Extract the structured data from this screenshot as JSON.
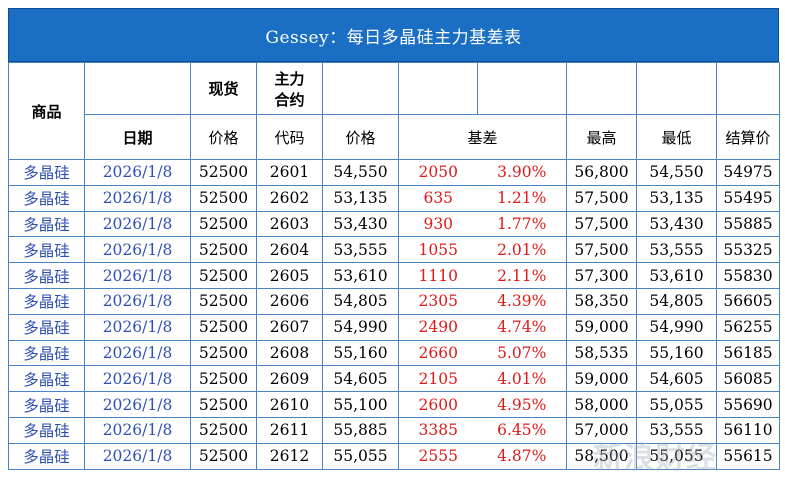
{
  "title": "Gessey：每日多晶硅主力基差表",
  "headers": {
    "product": "商品",
    "spot": "现货",
    "main_contract": [
      "主力",
      "合约"
    ],
    "date": "日期",
    "spot_price": "价格",
    "code": "代码",
    "price": "价格",
    "basis": "基差",
    "high": "最高",
    "low": "最低",
    "settle": "结算价"
  },
  "rows": [
    {
      "product": "多晶硅",
      "date": "2026/1/8",
      "spot": "52500",
      "code": "2601",
      "price": "54,550",
      "basis": "2050",
      "pct": "3.90%",
      "high": "56,800",
      "low": "54,550",
      "settle": "54975"
    },
    {
      "product": "多晶硅",
      "date": "2026/1/8",
      "spot": "52500",
      "code": "2602",
      "price": "53,135",
      "basis": "635",
      "pct": "1.21%",
      "high": "57,500",
      "low": "53,135",
      "settle": "55495"
    },
    {
      "product": "多晶硅",
      "date": "2026/1/8",
      "spot": "52500",
      "code": "2603",
      "price": "53,430",
      "basis": "930",
      "pct": "1.77%",
      "high": "57,500",
      "low": "53,430",
      "settle": "55885"
    },
    {
      "product": "多晶硅",
      "date": "2026/1/8",
      "spot": "52500",
      "code": "2604",
      "price": "53,555",
      "basis": "1055",
      "pct": "2.01%",
      "high": "57,500",
      "low": "53,555",
      "settle": "55325"
    },
    {
      "product": "多晶硅",
      "date": "2026/1/8",
      "spot": "52500",
      "code": "2605",
      "price": "53,610",
      "basis": "1110",
      "pct": "2.11%",
      "high": "57,300",
      "low": "53,610",
      "settle": "55830"
    },
    {
      "product": "多晶硅",
      "date": "2026/1/8",
      "spot": "52500",
      "code": "2606",
      "price": "54,805",
      "basis": "2305",
      "pct": "4.39%",
      "high": "58,350",
      "low": "54,805",
      "settle": "56605"
    },
    {
      "product": "多晶硅",
      "date": "2026/1/8",
      "spot": "52500",
      "code": "2607",
      "price": "54,990",
      "basis": "2490",
      "pct": "4.74%",
      "high": "59,000",
      "low": "54,990",
      "settle": "56255"
    },
    {
      "product": "多晶硅",
      "date": "2026/1/8",
      "spot": "52500",
      "code": "2608",
      "price": "55,160",
      "basis": "2660",
      "pct": "5.07%",
      "high": "58,535",
      "low": "55,160",
      "settle": "56185"
    },
    {
      "product": "多晶硅",
      "date": "2026/1/8",
      "spot": "52500",
      "code": "2609",
      "price": "54,605",
      "basis": "2105",
      "pct": "4.01%",
      "high": "59,000",
      "low": "54,605",
      "settle": "56085"
    },
    {
      "product": "多晶硅",
      "date": "2026/1/8",
      "spot": "52500",
      "code": "2610",
      "price": "55,100",
      "basis": "2600",
      "pct": "4.95%",
      "high": "58,000",
      "low": "55,055",
      "settle": "55690"
    },
    {
      "product": "多晶硅",
      "date": "2026/1/8",
      "spot": "52500",
      "code": "2611",
      "price": "55,885",
      "basis": "3385",
      "pct": "6.45%",
      "high": "57,000",
      "low": "53,555",
      "settle": "56110"
    },
    {
      "product": "多晶硅",
      "date": "2026/1/8",
      "spot": "52500",
      "code": "2612",
      "price": "55,055",
      "basis": "2555",
      "pct": "4.87%",
      "high": "58,500",
      "low": "55,055",
      "settle": "55615"
    }
  ],
  "colors": {
    "title_bg": "#1a6fc4",
    "border": "#4a84c4",
    "link_blue": "#2e4fb5",
    "basis_red": "#e01919"
  },
  "watermark": {
    "text": "新浪财经"
  }
}
